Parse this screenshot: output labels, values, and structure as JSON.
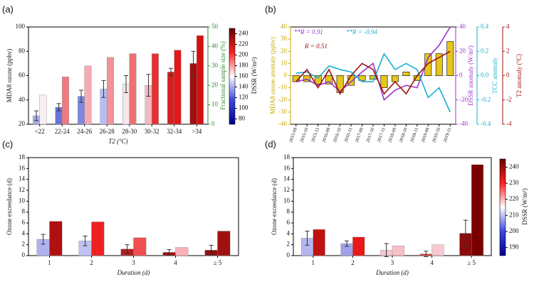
{
  "chart_data": [
    {
      "panel_label": "(a)",
      "type": "bar",
      "x_label": "T2 (°C)",
      "y_label": "MDA8 ozone (ppbv)",
      "y2_label": "Fractional sample size (%)",
      "y2_color": "#2e8b2e",
      "categories": [
        "<22",
        "22-24",
        "24-26",
        "26-28",
        "28-30",
        "30-32",
        "32-34",
        ">34"
      ],
      "ylim": [
        20,
        100
      ],
      "yticks": [
        20,
        40,
        60,
        80,
        100
      ],
      "y2lim": [
        0,
        50
      ],
      "y2ticks": [
        0,
        10,
        20,
        30,
        40,
        50
      ],
      "series": [
        {
          "axis": "y",
          "values": [
            27,
            34,
            43,
            49,
            53,
            52,
            63,
            70
          ],
          "errors": [
            4,
            3,
            5,
            7,
            7,
            9,
            3,
            10
          ],
          "colors": [
            "#a8aeee",
            "#6a74d8",
            "#7f88e0",
            "#b8bcf0",
            "#f6e6ec",
            "#f4b8c0",
            "#d42020",
            "#a01010"
          ]
        },
        {
          "axis": "y2",
          "values": [
            15,
            24.4,
            30,
            34.4,
            36.3,
            36.3,
            38.1,
            45.6
          ],
          "colors": [
            "#faf0f2",
            "#f07a80",
            "#f6aab2",
            "#f4929a",
            "#f07070",
            "#e83030",
            "#e01818",
            "#d41010"
          ]
        }
      ],
      "colorbar": {
        "label": "DSSR (W/m²)",
        "lim": [
          70,
          250
        ],
        "ticks": [
          80,
          100,
          120,
          140,
          160,
          180,
          200,
          220,
          240
        ],
        "colors": [
          "#00008b",
          "#3c46e0",
          "#ffffff",
          "#ff2020",
          "#6b0000"
        ]
      }
    },
    {
      "panel_label": "(b)",
      "type": "combo",
      "categories": [
        "2015-09",
        "2015-10",
        "2015-11",
        "2016-09",
        "2016-10",
        "2016-11",
        "2017-09",
        "2017-10",
        "2017-11",
        "2018-09",
        "2018-10",
        "2018-11",
        "2019-09",
        "2019-10",
        "2019-11"
      ],
      "y_label": "MDA8 ozone anomaly (ppbv)",
      "y_color": "#c8a800",
      "ylim": [
        -40,
        40
      ],
      "yticks": [
        -40,
        -30,
        -20,
        -10,
        0,
        10,
        20,
        30,
        40
      ],
      "y2_label": "DSSR anomaly (W/m²)",
      "y2_color": "#9932cc",
      "y2lim": [
        -40,
        40
      ],
      "y2ticks": [
        -40,
        -20,
        0,
        20,
        40
      ],
      "y3_label": "TCC anomaly",
      "y3_color": "#1ab0d0",
      "y3lim": [
        -0.4,
        0.4
      ],
      "y3ticks": [
        -0.4,
        -0.2,
        {
          "value": 0,
          "label": "0.0"
        },
        0.2,
        0.4
      ],
      "y4_label": "T2 anomaly (°C)",
      "y4_color": "#a01010",
      "y4lim": [
        -4,
        4
      ],
      "y4ticks": [
        -4,
        -2,
        0,
        2,
        4
      ],
      "series": [
        {
          "type": "bar",
          "axis": "y",
          "color": "#e6c619",
          "values": [
            -5,
            -5,
            -7,
            -7,
            -14,
            -8,
            -4,
            -3,
            -10,
            -5,
            3,
            -4,
            18,
            18,
            28
          ]
        },
        {
          "type": "line",
          "axis": "y2",
          "color": "#9932cc",
          "values": [
            -5,
            -3,
            -8,
            -5,
            -13,
            -5,
            3,
            10,
            -20,
            -12,
            -8,
            -10,
            15,
            25,
            40
          ]
        },
        {
          "type": "line",
          "axis": "y3",
          "color": "#1ab0d0",
          "values": [
            0.02,
            0.03,
            -0.02,
            0.08,
            0.05,
            0.03,
            -0.05,
            -0.05,
            0.18,
            0.05,
            0.1,
            0.05,
            -0.18,
            -0.1,
            -0.3
          ]
        },
        {
          "type": "line",
          "axis": "y4",
          "color": "#a01010",
          "values": [
            -0.5,
            0.5,
            -1,
            0.5,
            -1.5,
            0,
            1,
            0.5,
            -1.5,
            -0.5,
            -1.5,
            0,
            1,
            1.5,
            2
          ]
        }
      ],
      "annotations": [
        {
          "text": "**R = 0.91",
          "color": "#9932cc"
        },
        {
          "text": "**R = -0.94",
          "color": "#1ab0d0"
        },
        {
          "text": "R = 0.51",
          "color": "#a01010"
        }
      ]
    },
    {
      "panel_label": "(c)",
      "type": "bar",
      "x_label": "Duration (d)",
      "y_label": "Ozone exceedance (d)",
      "categories": [
        "1",
        "2",
        "3",
        "4",
        "≥ 5"
      ],
      "ylim": [
        0,
        18
      ],
      "yticks": [
        0,
        2,
        4,
        6,
        8,
        10,
        12,
        14,
        16,
        18
      ],
      "series": [
        {
          "axis": "y",
          "values": [
            3,
            2.7,
            1.2,
            0.6,
            1
          ],
          "errors": [
            0.9,
            0.9,
            0.8,
            0.5,
            0.9
          ],
          "colors": [
            "#b0b2f0",
            "#c0c2f4",
            "#b02020",
            "#a01010",
            "#901010"
          ]
        },
        {
          "axis": "y",
          "values": [
            6.3,
            6.2,
            3.3,
            1.5,
            4.5
          ],
          "colors": [
            "#b01010",
            "#f02020",
            "#f05050",
            "#f8b0b8",
            "#a01010"
          ]
        }
      ]
    },
    {
      "panel_label": "(d)",
      "type": "bar",
      "x_label": "Duration (d)",
      "y_label": "Ozone exceedance (d)",
      "categories": [
        "1",
        "2",
        "3",
        "4",
        "≥ 5"
      ],
      "ylim": [
        0,
        18
      ],
      "yticks": [
        0,
        2,
        4,
        6,
        8,
        10,
        12,
        14,
        16,
        18
      ],
      "series": [
        {
          "axis": "y",
          "values": [
            3.2,
            2.2,
            1,
            0.3,
            4.1
          ],
          "errors": [
            1.3,
            0.5,
            1.2,
            0.5,
            2.4
          ],
          "colors": [
            "#b4b6f2",
            "#9ea2ec",
            "#f8c8d0",
            "#e03030",
            "#8a0c0c"
          ]
        },
        {
          "axis": "y",
          "values": [
            4.8,
            3.4,
            1.8,
            2,
            16.7
          ],
          "colors": [
            "#c01010",
            "#e81818",
            "#f8c0c8",
            "#f8c8d0",
            "#7a0000"
          ]
        }
      ],
      "colorbar": {
        "label": "DSSR (W/m²)",
        "lim": [
          185,
          245
        ],
        "ticks": [
          190,
          200,
          210,
          220,
          230,
          240
        ],
        "colors": [
          "#00008b",
          "#3c46e0",
          "#ffffff",
          "#ff2020",
          "#6b0000"
        ]
      }
    }
  ]
}
